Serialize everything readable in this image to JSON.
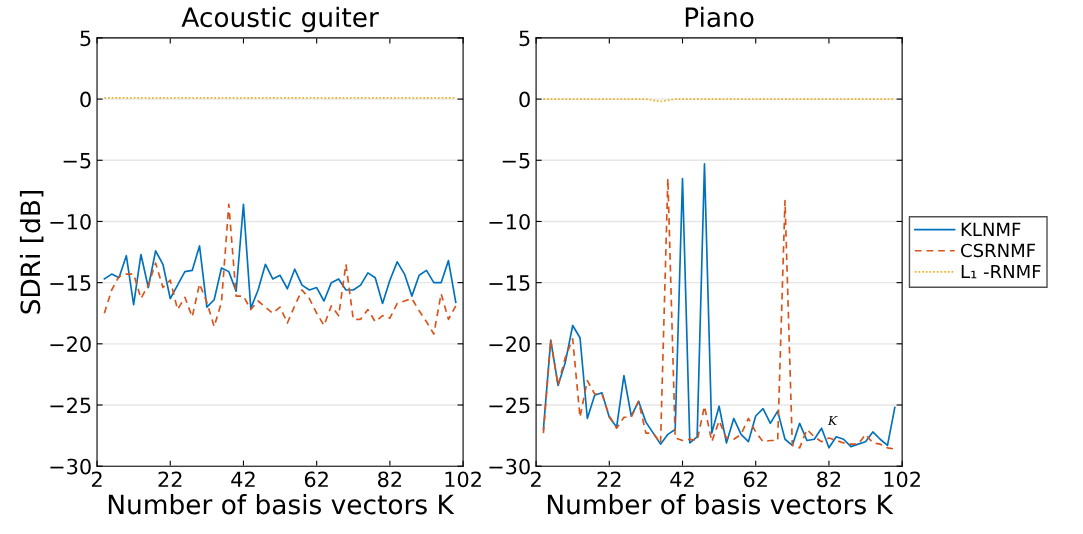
{
  "chart_data": [
    {
      "type": "line",
      "title": "Acoustic guiter",
      "xlabel": "Number of basis vectors K",
      "ylabel": "SDRi [dB]",
      "x": [
        4,
        6,
        8,
        10,
        12,
        14,
        16,
        18,
        20,
        22,
        24,
        26,
        28,
        30,
        32,
        34,
        36,
        38,
        40,
        42,
        44,
        46,
        48,
        50,
        52,
        54,
        56,
        58,
        60,
        62,
        64,
        66,
        68,
        70,
        72,
        74,
        76,
        78,
        80,
        82,
        84,
        86,
        88,
        90,
        92,
        94,
        96,
        98,
        100
      ],
      "xlim": [
        2,
        102
      ],
      "xticks": [
        2,
        22,
        42,
        62,
        82,
        102
      ],
      "ylim": [
        -30,
        5
      ],
      "yticks": [
        -30,
        -25,
        -20,
        -15,
        -10,
        -5,
        0,
        5
      ],
      "grid": "y",
      "legend": false,
      "series": [
        {
          "color": "#0072bd",
          "line_style": "solid",
          "values": [
            -14.7,
            -14.3,
            -14.6,
            -12.8,
            -16.8,
            -12.7,
            -15.4,
            -12.4,
            -13.5,
            -16.3,
            -15.2,
            -14.1,
            -14.0,
            -12.0,
            -17.0,
            -16.4,
            -13.8,
            -14.1,
            -15.7,
            -8.6,
            -17.1,
            -15.6,
            -13.5,
            -14.7,
            -14.4,
            -15.5,
            -13.9,
            -15.2,
            -15.6,
            -15.4,
            -16.5,
            -15.0,
            -14.7,
            -15.6,
            -15.6,
            -15.2,
            -14.2,
            -14.6,
            -16.7,
            -14.8,
            -13.3,
            -14.3,
            -16.1,
            -14.4,
            -14.0,
            -15.0,
            -15.0,
            -13.2,
            -16.6
          ]
        },
        {
          "color": "#d95319",
          "line_style": "dashed",
          "values": [
            -17.5,
            -15.6,
            -14.5,
            -14.3,
            -14.3,
            -16.3,
            -15.2,
            -13.4,
            -15.4,
            -14.8,
            -17.2,
            -16.2,
            -17.8,
            -15.1,
            -16.6,
            -18.6,
            -16.6,
            -8.6,
            -16.1,
            -16.1,
            -17.2,
            -16.5,
            -17.0,
            -17.5,
            -17.0,
            -18.3,
            -16.9,
            -15.6,
            -16.3,
            -17.5,
            -18.5,
            -16.9,
            -17.7,
            -13.5,
            -18.0,
            -18.0,
            -17.2,
            -18.2,
            -17.7,
            -17.9,
            -16.7,
            -16.5,
            -16.3,
            -17.3,
            -18.2,
            -19.2,
            -15.9,
            -18.0,
            -16.9
          ]
        },
        {
          "color": "#edb120",
          "line_style": "dotted",
          "values": [
            0.1,
            0.1,
            0.1,
            0.1,
            0.1,
            0.1,
            0.1,
            0.1,
            0.1,
            0.1,
            0.1,
            0.1,
            0.1,
            0.1,
            0.1,
            0.1,
            0.1,
            0.1,
            0.1,
            0.1,
            0.1,
            0.1,
            0.1,
            0.1,
            0.1,
            0.1,
            0.1,
            0.1,
            0.1,
            0.1,
            0.1,
            0.1,
            0.1,
            0.1,
            0.1,
            0.1,
            0.1,
            0.1,
            0.1,
            0.1,
            0.1,
            0.1,
            0.1,
            0.1,
            0.1,
            0.1,
            0.1,
            0.1,
            0.1
          ]
        }
      ]
    },
    {
      "type": "line",
      "title": "Piano",
      "xlabel": "Number of basis vectors K",
      "x": [
        4,
        6,
        8,
        10,
        12,
        14,
        16,
        18,
        20,
        22,
        24,
        26,
        28,
        30,
        32,
        34,
        36,
        38,
        40,
        42,
        44,
        46,
        48,
        50,
        52,
        54,
        56,
        58,
        60,
        62,
        64,
        66,
        68,
        70,
        72,
        74,
        76,
        78,
        80,
        82,
        84,
        86,
        88,
        90,
        92,
        94,
        96,
        98,
        100
      ],
      "xlim": [
        2,
        102
      ],
      "xticks": [
        2,
        22,
        42,
        62,
        82,
        102
      ],
      "ylim": [
        -30,
        5
      ],
      "yticks": [
        -30,
        -25,
        -20,
        -15,
        -10,
        -5,
        0,
        5
      ],
      "grid": "y",
      "legend": "right",
      "annotations": [
        "K"
      ],
      "series": [
        {
          "name": "KLNMF",
          "color": "#0072bd",
          "line_style": "solid",
          "values": [
            -27.0,
            -19.7,
            -23.4,
            -21.5,
            -18.5,
            -19.5,
            -26.1,
            -24.2,
            -24.0,
            -26.0,
            -26.8,
            -22.6,
            -25.9,
            -24.7,
            -26.4,
            -27.3,
            -28.2,
            -27.4,
            -27.0,
            -6.5,
            -28.1,
            -27.6,
            -5.3,
            -27.3,
            -25.1,
            -28.1,
            -26.1,
            -27.4,
            -28.0,
            -25.9,
            -25.3,
            -26.5,
            -25.5,
            -27.8,
            -28.3,
            -26.5,
            -27.9,
            -27.8,
            -26.9,
            -28.5,
            -27.6,
            -27.8,
            -28.4,
            -28.2,
            -28.0,
            -27.2,
            -27.8,
            -28.3,
            -25.2
          ]
        },
        {
          "name": "CSRNMF",
          "color": "#d95319",
          "line_style": "dashed",
          "values": [
            -27.3,
            -19.7,
            -23.4,
            -21.1,
            -19.6,
            -26.0,
            -23.0,
            -24.1,
            -24.1,
            -25.9,
            -26.9,
            -26.0,
            -26.0,
            -24.7,
            -27.3,
            -27.3,
            -28.1,
            -6.5,
            -27.7,
            -27.9,
            -27.8,
            -27.9,
            -25.1,
            -28.0,
            -26.3,
            -27.7,
            -27.8,
            -27.4,
            -26.1,
            -27.2,
            -28.0,
            -27.9,
            -27.9,
            -8.3,
            -28.3,
            -28.5,
            -27.0,
            -27.6,
            -28.0,
            -27.7,
            -27.9,
            -28.1,
            -28.2,
            -28.2,
            -27.4,
            -28.1,
            -28.2,
            -28.5,
            -28.6
          ]
        },
        {
          "name": "L₁ -RNMF",
          "color": "#edb120",
          "line_style": "dotted",
          "values": [
            0.0,
            0.0,
            0.0,
            0.0,
            0.0,
            0.0,
            0.0,
            0.0,
            0.0,
            0.0,
            0.0,
            0.0,
            0.0,
            0.0,
            0.0,
            -0.1,
            -0.2,
            -0.1,
            0.0,
            0.0,
            0.0,
            0.0,
            0.0,
            0.0,
            0.0,
            0.0,
            0.0,
            0.0,
            0.0,
            0.0,
            0.0,
            0.0,
            0.0,
            0.0,
            0.0,
            0.0,
            0.0,
            0.0,
            0.0,
            0.0,
            0.0,
            0.0,
            0.0,
            0.0,
            0.0,
            0.0,
            0.0,
            0.0,
            0.0
          ]
        }
      ]
    }
  ]
}
